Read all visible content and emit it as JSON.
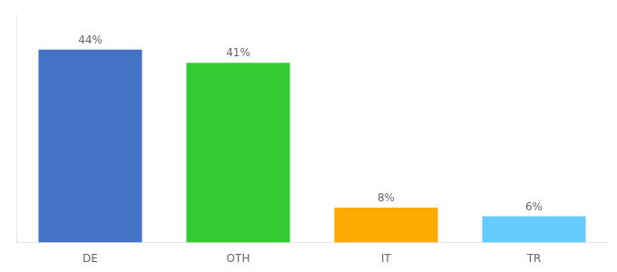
{
  "chart_data": {
    "type": "bar",
    "categories": [
      "DE",
      "OTH",
      "IT",
      "TR"
    ],
    "values": [
      44,
      41,
      8,
      6
    ],
    "value_labels": [
      "44%",
      "41%",
      "8%",
      "6%"
    ],
    "colors": [
      "#4472c4",
      "#33cc33",
      "#ffaa00",
      "#66ccff"
    ],
    "ylim": [
      0,
      52
    ],
    "data_labels": true,
    "tick_labels": "x",
    "grid": false
  }
}
